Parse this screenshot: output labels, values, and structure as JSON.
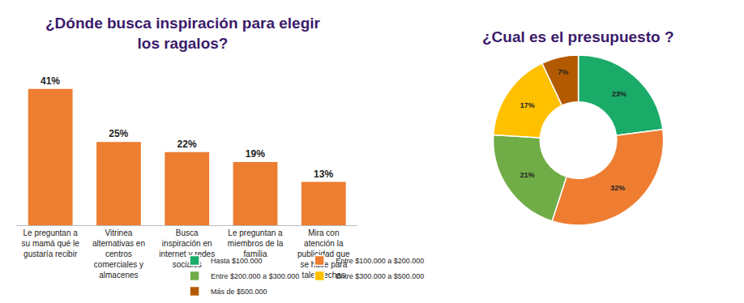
{
  "chart_data": [
    {
      "type": "bar",
      "title": "¿Dónde busca inspiración para elegir los ragalos?",
      "categories": [
        "Le preguntan a su mamá qué le gustaría recibir",
        "Vitrinea alternativas en centros comerciales y almacenes",
        "Busca inspiración en internet y redes sociales",
        "Le preguntan a miembros de la familia",
        "Mira con atención la publicidad que se hace para tales fechas"
      ],
      "values": [
        41,
        25,
        22,
        19,
        13
      ],
      "value_labels": [
        "41%",
        "25%",
        "22%",
        "19%",
        "13%"
      ],
      "color": "#ed7d31",
      "ylim": [
        0,
        45
      ],
      "grid": false,
      "data_labels": true,
      "tick_labels": "x"
    },
    {
      "type": "pie",
      "title": "¿Cual es el presupuesto ?",
      "categories": [
        "Hasta $100.000",
        "Entre $100.000 a $200.000",
        "Entre $200.000 a $300.000",
        "Entre $300.000 a $500.000",
        "Más de $500.000"
      ],
      "values": [
        23,
        32,
        21,
        17,
        7
      ],
      "value_labels": [
        "23%",
        "32%",
        "21%",
        "17%",
        "7%"
      ],
      "colors": [
        "#1aab68",
        "#ee7d31",
        "#70ad47",
        "#ffc000",
        "#b35a00"
      ],
      "data_labels": true,
      "legend": "bottom"
    }
  ]
}
